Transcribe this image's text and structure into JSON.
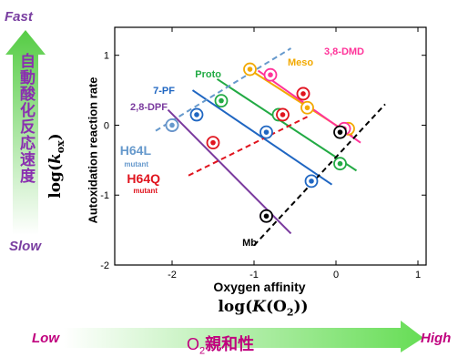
{
  "labels": {
    "fast": "Fast",
    "slow": "Slow",
    "low": "Low",
    "high": "High",
    "vertical_jp": "自動酸化反応速度",
    "o2_affinity_jp": "親和性",
    "log_kox": "log(kox)",
    "log_K_O2": "log(K(O2))"
  },
  "colors": {
    "meso": "#f2a900",
    "dmd": "#ff3399",
    "proto": "#22aa44",
    "pf7": "#1f66c2",
    "dpf": "#7a3a9e",
    "h64l": "#6699cc",
    "h64q": "#e0141e",
    "mb": "#000000",
    "arrow_green": "#66dd55",
    "axis_title_purple": "#7a3fa1",
    "axis_end_magenta": "#c0007e"
  },
  "chart_data": {
    "type": "scatter",
    "title": "",
    "xlabel": "Oxygen affinity",
    "ylabel": "Autoxidation reaction rate",
    "xlim": [
      -2.7,
      1.1
    ],
    "ylim": [
      -2,
      1.4
    ],
    "xticks": [
      "-2",
      "-1",
      "0",
      "1"
    ],
    "yticks": [
      "-2",
      "-1",
      "0",
      "1"
    ],
    "x_tick_values": [
      -2,
      -1,
      0,
      1
    ],
    "y_tick_values": [
      -2,
      -1,
      0,
      1
    ],
    "grid": false,
    "series": [
      {
        "name": "Meso",
        "color": "#f2a900",
        "style": "solid",
        "line": [
          [
            -1.1,
            0.83
          ],
          [
            0.2,
            -0.15
          ]
        ],
        "points": [
          [
            -1.05,
            0.8
          ],
          [
            -0.35,
            0.25
          ],
          [
            0.15,
            -0.05
          ]
        ]
      },
      {
        "name": "3,8-DMD",
        "color": "#ff3399",
        "style": "solid",
        "line": [
          [
            -0.95,
            0.78
          ],
          [
            0.3,
            -0.25
          ]
        ],
        "points": [
          [
            -0.8,
            0.72
          ],
          [
            -0.4,
            0.45
          ],
          [
            0.1,
            -0.05
          ]
        ]
      },
      {
        "name": "Proto",
        "color": "#22aa44",
        "style": "solid",
        "line": [
          [
            -1.45,
            0.66
          ],
          [
            0.25,
            -0.65
          ]
        ],
        "points": [
          [
            -1.4,
            0.35
          ],
          [
            -0.7,
            0.15
          ],
          [
            0.05,
            -0.55
          ]
        ]
      },
      {
        "name": "7-PF",
        "color": "#1f66c2",
        "style": "solid",
        "line": [
          [
            -1.75,
            0.5
          ],
          [
            -0.05,
            -0.85
          ]
        ],
        "points": [
          [
            -1.7,
            0.15
          ],
          [
            -0.85,
            -0.1
          ],
          [
            -0.3,
            -0.8
          ]
        ]
      },
      {
        "name": "2,8-DPF",
        "color": "#7a3a9e",
        "style": "solid",
        "line": [
          [
            -2.05,
            0.22
          ],
          [
            -0.55,
            -1.55
          ]
        ],
        "points": [
          [
            -2.0,
            0.0
          ],
          [
            -0.85,
            -1.3
          ]
        ]
      },
      {
        "name": "H64L",
        "color": "#6699cc",
        "style": "dashed",
        "line": [
          [
            -2.2,
            -0.08
          ],
          [
            -0.55,
            1.1
          ]
        ],
        "points": [
          [
            -2.0,
            0.0
          ]
        ]
      },
      {
        "name": "H64Q",
        "color": "#e0141e",
        "style": "dashed",
        "line": [
          [
            -1.8,
            -0.72
          ],
          [
            -0.35,
            0.12
          ]
        ],
        "points": [
          [
            -1.5,
            -0.25
          ],
          [
            -0.65,
            0.15
          ],
          [
            -0.4,
            0.45
          ]
        ]
      },
      {
        "name": "Mb",
        "color": "#000000",
        "style": "dashed",
        "line": [
          [
            -1.0,
            -1.72
          ],
          [
            0.6,
            0.3
          ]
        ],
        "points": [
          [
            -0.85,
            -1.3
          ],
          [
            0.05,
            -0.1
          ]
        ]
      }
    ],
    "series_labels": [
      {
        "text": "Meso",
        "color": "#f2a900"
      },
      {
        "text": "3,8-DMD",
        "color": "#ff3399"
      },
      {
        "text": "Proto",
        "color": "#22aa44"
      },
      {
        "text": "7-PF",
        "color": "#1f66c2"
      },
      {
        "text": "2,8-DPF",
        "color": "#7a3a9e"
      },
      {
        "text": "H64L",
        "sub": "mutant",
        "color": "#6699cc"
      },
      {
        "text": "H64Q",
        "sub": "mutant",
        "color": "#e0141e"
      },
      {
        "text": "Mb",
        "color": "#000000"
      }
    ]
  }
}
